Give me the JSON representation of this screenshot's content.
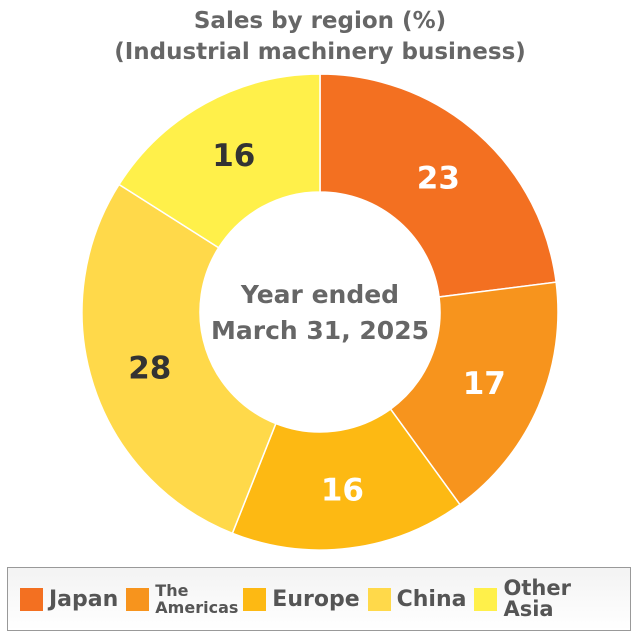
{
  "chart_data": {
    "type": "pie",
    "donut": true,
    "title_lines": [
      "Sales by region (%)",
      "(Industrial machinery business)"
    ],
    "center_label_lines": [
      "Year ended",
      "March 31, 2025"
    ],
    "categories": [
      "Japan",
      "The Americas",
      "Europe",
      "China",
      "Other Asia"
    ],
    "values": [
      23,
      17,
      16,
      28,
      16
    ],
    "colors": [
      "#F37021",
      "#F7941D",
      "#FDB913",
      "#FFD94A",
      "#FFF04A"
    ],
    "label_colors": [
      "#ffffff",
      "#ffffff",
      "#ffffff",
      "#333333",
      "#333333"
    ],
    "start": "top",
    "direction": "clockwise",
    "legend_position": "bottom"
  },
  "legend": [
    {
      "lines": [
        "Japan"
      ]
    },
    {
      "lines": [
        "The",
        "Americas"
      ]
    },
    {
      "lines": [
        "Europe"
      ]
    },
    {
      "lines": [
        "China"
      ]
    },
    {
      "lines": [
        "Other",
        "Asia"
      ]
    }
  ]
}
